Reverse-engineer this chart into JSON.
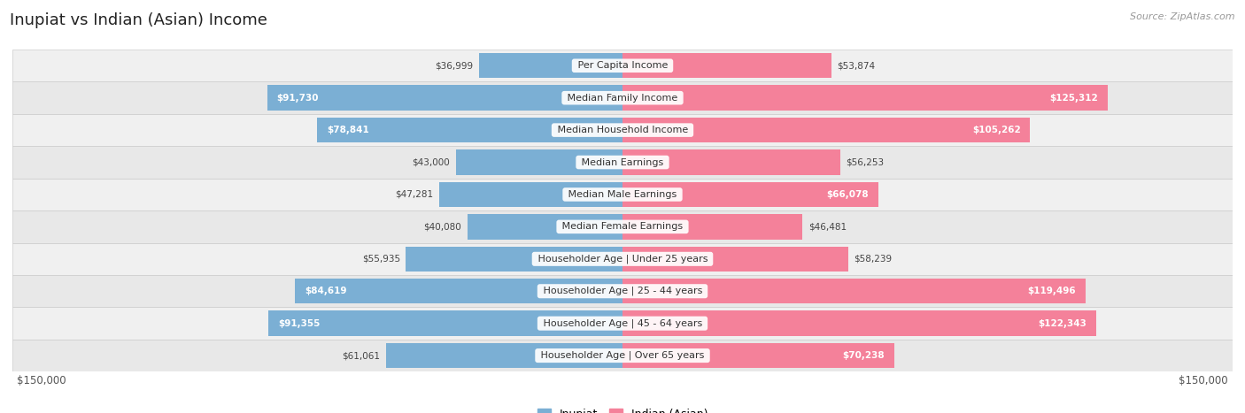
{
  "title": "Inupiat vs Indian (Asian) Income",
  "source": "Source: ZipAtlas.com",
  "categories": [
    "Per Capita Income",
    "Median Family Income",
    "Median Household Income",
    "Median Earnings",
    "Median Male Earnings",
    "Median Female Earnings",
    "Householder Age | Under 25 years",
    "Householder Age | 25 - 44 years",
    "Householder Age | 45 - 64 years",
    "Householder Age | Over 65 years"
  ],
  "inupiat_values": [
    36999,
    91730,
    78841,
    43000,
    47281,
    40080,
    55935,
    84619,
    91355,
    61061
  ],
  "indian_values": [
    53874,
    125312,
    105262,
    56253,
    66078,
    46481,
    58239,
    119496,
    122343,
    70238
  ],
  "inupiat_color": "#7bafd4",
  "inupiat_color_dark": "#5b8fc4",
  "indian_color": "#f4819a",
  "indian_color_dark": "#e8607a",
  "axis_limit": 150000,
  "bar_height": 0.78,
  "row_colors": [
    "#f0f0f0",
    "#e8e8e8"
  ],
  "title_fontsize": 13,
  "label_fontsize": 8,
  "value_fontsize": 7.5,
  "legend_fontsize": 9,
  "axis_label_fontsize": 8.5,
  "inside_label_threshold": 65000
}
